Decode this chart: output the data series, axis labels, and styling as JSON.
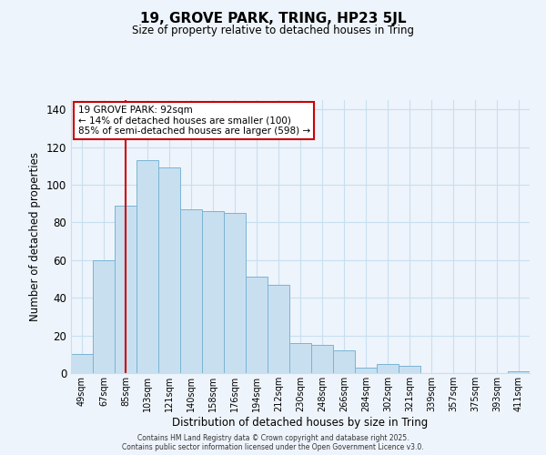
{
  "title": "19, GROVE PARK, TRING, HP23 5JL",
  "subtitle": "Size of property relative to detached houses in Tring",
  "xlabel": "Distribution of detached houses by size in Tring",
  "ylabel": "Number of detached properties",
  "bar_labels": [
    "49sqm",
    "67sqm",
    "85sqm",
    "103sqm",
    "121sqm",
    "140sqm",
    "158sqm",
    "176sqm",
    "194sqm",
    "212sqm",
    "230sqm",
    "248sqm",
    "266sqm",
    "284sqm",
    "302sqm",
    "321sqm",
    "339sqm",
    "357sqm",
    "375sqm",
    "393sqm",
    "411sqm"
  ],
  "bar_values": [
    10,
    60,
    89,
    113,
    109,
    87,
    86,
    85,
    51,
    47,
    16,
    15,
    12,
    3,
    5,
    4,
    0,
    0,
    0,
    0,
    1
  ],
  "bar_color": "#c8dff0",
  "bar_edge_color": "#7ab4d4",
  "grid_color": "#c8dff0",
  "background_color": "#eef4fb",
  "vline_x": 2.0,
  "vline_color": "#cc0000",
  "annotation_title": "19 GROVE PARK: 92sqm",
  "annotation_line1": "← 14% of detached houses are smaller (100)",
  "annotation_line2": "85% of semi-detached houses are larger (598) →",
  "annotation_box_color": "#ffffff",
  "annotation_box_edge": "#cc0000",
  "ylim": [
    0,
    145
  ],
  "yticks": [
    0,
    20,
    40,
    60,
    80,
    100,
    120,
    140
  ],
  "footer_line1": "Contains HM Land Registry data © Crown copyright and database right 2025.",
  "footer_line2": "Contains public sector information licensed under the Open Government Licence v3.0."
}
